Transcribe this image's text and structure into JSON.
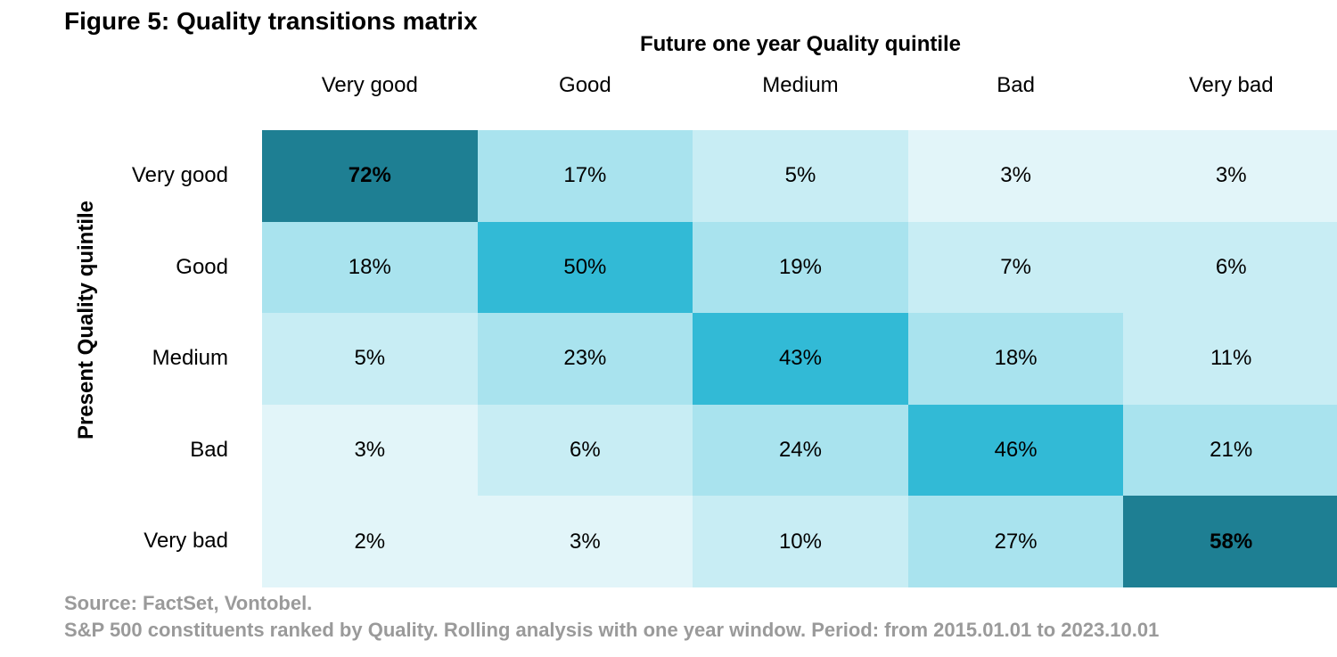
{
  "figure": {
    "title": "Figure 5: Quality transitions matrix",
    "source": "Source: FactSet, Vontobel.",
    "note": "S&P 500 constituents ranked by Quality. Rolling analysis with one year window. Period: from 2015.01.01 to 2023.10.01"
  },
  "colors": {
    "very_dark": "#1e7f93",
    "strong": "#32bad6",
    "mid": "#a9e3ee",
    "light": "#c8edf4",
    "lightest": "#e2f5f9"
  },
  "chart_data": {
    "type": "heatmap",
    "title": "Figure 5: Quality transitions matrix",
    "xlabel": "Future one year Quality quintile",
    "ylabel": "Present  Quality quintile",
    "columns": [
      "Very good",
      "Good",
      "Medium",
      "Bad",
      "Very bad"
    ],
    "rows": [
      "Very good",
      "Good",
      "Medium",
      "Bad",
      "Very bad"
    ],
    "values": [
      [
        72,
        17,
        5,
        3,
        3
      ],
      [
        18,
        50,
        19,
        7,
        6
      ],
      [
        5,
        23,
        43,
        18,
        11
      ],
      [
        3,
        6,
        24,
        46,
        21
      ],
      [
        2,
        3,
        10,
        27,
        58
      ]
    ],
    "labels": [
      [
        "72%",
        "17%",
        "5%",
        "3%",
        "3%"
      ],
      [
        "18%",
        "50%",
        "19%",
        "7%",
        "6%"
      ],
      [
        "5%",
        "23%",
        "43%",
        "18%",
        "11%"
      ],
      [
        "3%",
        "6%",
        "24%",
        "46%",
        "21%"
      ],
      [
        "2%",
        "3%",
        "10%",
        "27%",
        "58%"
      ]
    ],
    "bold_cells": [
      [
        0,
        0
      ],
      [
        4,
        4
      ]
    ]
  }
}
